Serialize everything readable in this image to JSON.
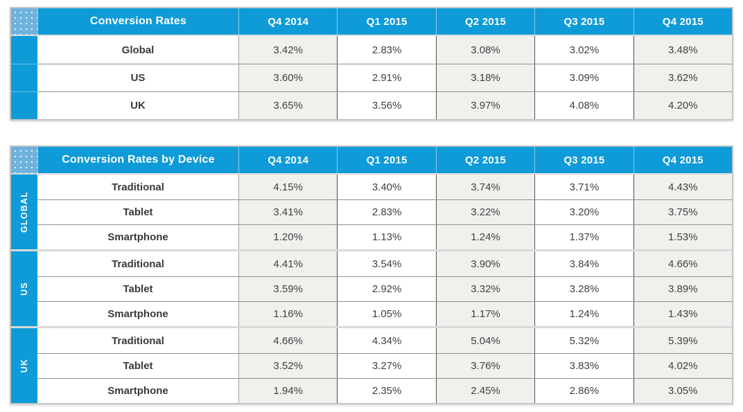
{
  "colors": {
    "header_blue": "#0e9bd8",
    "corner_dotted_blue": "#6fb2de",
    "shaded_column_bg": "#f1f0ed",
    "body_text": "#414042",
    "outer_border": "#c5c5c5"
  },
  "chart_data": [
    {
      "type": "table",
      "title": "Conversion Rates",
      "columns": [
        "Q4 2014",
        "Q1 2015",
        "Q2 2015",
        "Q3 2015",
        "Q4 2015"
      ],
      "rows": [
        {
          "label": "Global",
          "values": [
            "3.42%",
            "2.83%",
            "3.08%",
            "3.02%",
            "3.48%"
          ]
        },
        {
          "label": "US",
          "values": [
            "3.60%",
            "2.91%",
            "3.18%",
            "3.09%",
            "3.62%"
          ]
        },
        {
          "label": "UK",
          "values": [
            "3.65%",
            "3.56%",
            "3.97%",
            "4.08%",
            "4.20%"
          ]
        }
      ]
    },
    {
      "type": "table",
      "title": "Conversion Rates by Device",
      "columns": [
        "Q4 2014",
        "Q1 2015",
        "Q2 2015",
        "Q3 2015",
        "Q4 2015"
      ],
      "groups": [
        {
          "label": "GLOBAL",
          "rows": [
            {
              "label": "Traditional",
              "values": [
                "4.15%",
                "3.40%",
                "3.74%",
                "3.71%",
                "4.43%"
              ]
            },
            {
              "label": "Tablet",
              "values": [
                "3.41%",
                "2.83%",
                "3.22%",
                "3.20%",
                "3.75%"
              ]
            },
            {
              "label": "Smartphone",
              "values": [
                "1.20%",
                "1.13%",
                "1.24%",
                "1.37%",
                "1.53%"
              ]
            }
          ]
        },
        {
          "label": "US",
          "rows": [
            {
              "label": "Traditional",
              "values": [
                "4.41%",
                "3.54%",
                "3.90%",
                "3.84%",
                "4.66%"
              ]
            },
            {
              "label": "Tablet",
              "values": [
                "3.59%",
                "2.92%",
                "3.32%",
                "3.28%",
                "3.89%"
              ]
            },
            {
              "label": "Smartphone",
              "values": [
                "1.16%",
                "1.05%",
                "1.17%",
                "1.24%",
                "1.43%"
              ]
            }
          ]
        },
        {
          "label": "UK",
          "rows": [
            {
              "label": "Traditional",
              "values": [
                "4.66%",
                "4.34%",
                "5.04%",
                "5.32%",
                "5.39%"
              ]
            },
            {
              "label": "Tablet",
              "values": [
                "3.52%",
                "3.27%",
                "3.76%",
                "3.83%",
                "4.02%"
              ]
            },
            {
              "label": "Smartphone",
              "values": [
                "1.94%",
                "2.35%",
                "2.45%",
                "2.86%",
                "3.05%"
              ]
            }
          ]
        }
      ]
    }
  ]
}
